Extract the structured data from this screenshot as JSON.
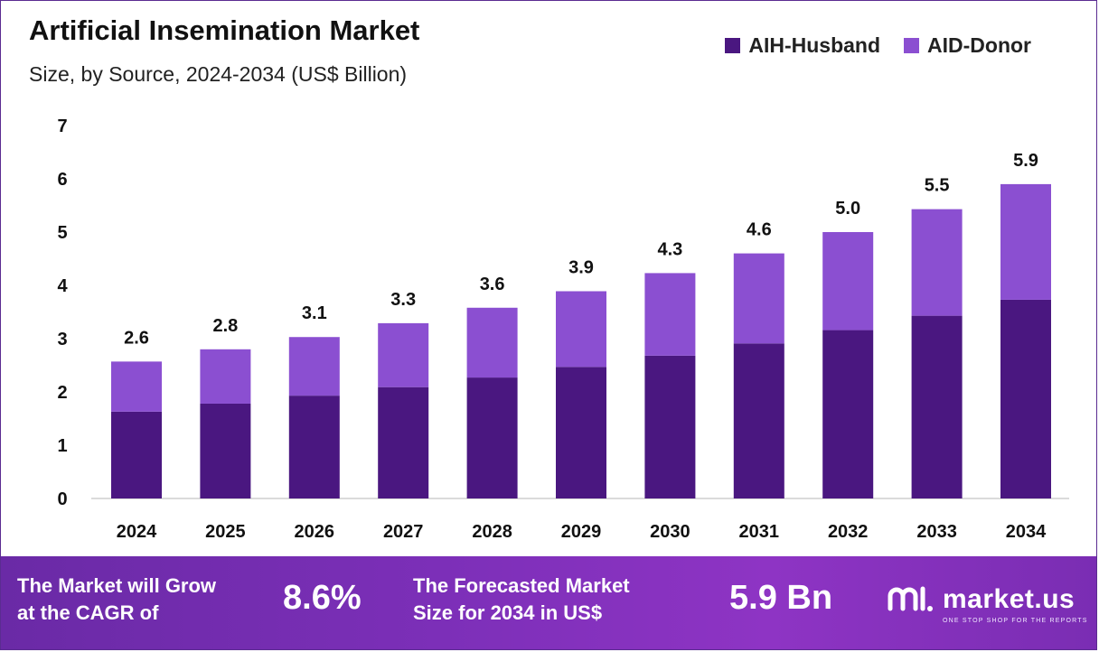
{
  "header": {
    "title": "Artificial Insemination Market",
    "subtitle": "Size, by Source, 2024-2034 (US$ Billion)"
  },
  "legend": [
    {
      "label": "AIH-Husband",
      "color": "#4a1780"
    },
    {
      "label": "AID-Donor",
      "color": "#8b4fd1"
    }
  ],
  "chart_data": {
    "type": "bar",
    "stacked": true,
    "categories": [
      "2024",
      "2025",
      "2026",
      "2027",
      "2028",
      "2029",
      "2030",
      "2031",
      "2032",
      "2033",
      "2034"
    ],
    "series": [
      {
        "name": "AIH-Husband",
        "values": [
          1.63,
          1.78,
          1.93,
          2.09,
          2.27,
          2.47,
          2.68,
          2.91,
          3.16,
          3.43,
          3.73
        ],
        "color": "#4a1780"
      },
      {
        "name": "AID-Donor",
        "values": [
          0.94,
          1.02,
          1.1,
          1.2,
          1.31,
          1.42,
          1.55,
          1.69,
          1.84,
          2.0,
          2.17
        ],
        "color": "#8b4fd1"
      }
    ],
    "totals": [
      "2.6",
      "2.8",
      "3.1",
      "3.3",
      "3.6",
      "3.9",
      "4.3",
      "4.6",
      "5.0",
      "5.5",
      "5.9"
    ],
    "ylim": [
      0,
      7
    ],
    "yticks": [
      0,
      1,
      2,
      3,
      4,
      5,
      6,
      7
    ],
    "grid": false,
    "legend_position": "top-right"
  },
  "footer": {
    "cagr_text": "The Market will Grow\nat the CAGR of",
    "cagr_value": "8.6%",
    "forecast_text": "The Forecasted Market\nSize for 2034 in US$",
    "forecast_value": "5.9 Bn",
    "brand_name": "market.us",
    "brand_tagline": "ONE STOP SHOP FOR THE REPORTS"
  }
}
